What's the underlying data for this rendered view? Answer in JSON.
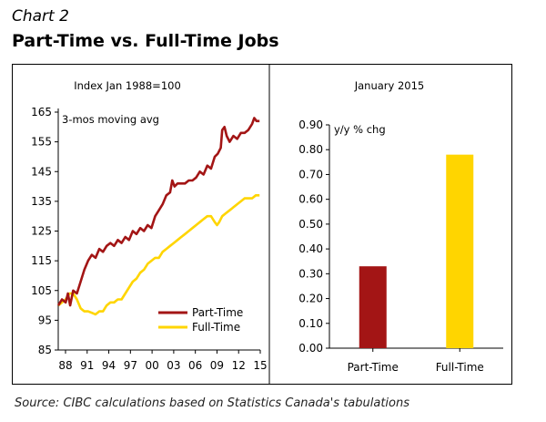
{
  "header": {
    "chart_number": "Chart 2",
    "title": "Part-Time vs. Full-Time Jobs"
  },
  "footer": {
    "source": "Source: CIBC calculations based on Statistics Canada's tabulations"
  },
  "colors": {
    "part_time": "#a31515",
    "full_time": "#ffd500"
  },
  "chart_data": [
    {
      "type": "line",
      "title": "Index Jan 1988=100",
      "annotation": "3-mos moving avg",
      "xlabel": "",
      "ylabel": "",
      "xlim": [
        1988,
        2015.1
      ],
      "ylim": [
        85,
        165
      ],
      "yticks": [
        85,
        95,
        105,
        115,
        125,
        135,
        145,
        155,
        165
      ],
      "xtick_labels": [
        "88",
        "91",
        "94",
        "97",
        "00",
        "03",
        "06",
        "09",
        "12",
        "15"
      ],
      "legend": "bottom-right",
      "series": [
        {
          "name": "Part-Time",
          "color": "#a31515",
          "points": [
            [
              1988.0,
              100
            ],
            [
              1988.5,
              102
            ],
            [
              1989.0,
              101
            ],
            [
              1989.3,
              104
            ],
            [
              1989.6,
              100
            ],
            [
              1990.0,
              105
            ],
            [
              1990.5,
              104
            ],
            [
              1991.0,
              108
            ],
            [
              1991.5,
              112
            ],
            [
              1992.0,
              115
            ],
            [
              1992.5,
              117
            ],
            [
              1993.0,
              116
            ],
            [
              1993.5,
              119
            ],
            [
              1994.0,
              118
            ],
            [
              1994.5,
              120
            ],
            [
              1995.0,
              121
            ],
            [
              1995.5,
              120
            ],
            [
              1996.0,
              122
            ],
            [
              1996.5,
              121
            ],
            [
              1997.0,
              123
            ],
            [
              1997.5,
              122
            ],
            [
              1998.0,
              125
            ],
            [
              1998.5,
              124
            ],
            [
              1999.0,
              126
            ],
            [
              1999.5,
              125
            ],
            [
              2000.0,
              127
            ],
            [
              2000.5,
              126
            ],
            [
              2001.0,
              130
            ],
            [
              2001.5,
              132
            ],
            [
              2002.0,
              134
            ],
            [
              2002.5,
              137
            ],
            [
              2003.0,
              138
            ],
            [
              2003.3,
              142
            ],
            [
              2003.6,
              140
            ],
            [
              2004.0,
              141
            ],
            [
              2004.5,
              141
            ],
            [
              2005.0,
              141
            ],
            [
              2005.5,
              142
            ],
            [
              2006.0,
              142
            ],
            [
              2006.5,
              143
            ],
            [
              2007.0,
              145
            ],
            [
              2007.5,
              144
            ],
            [
              2008.0,
              147
            ],
            [
              2008.5,
              146
            ],
            [
              2009.0,
              150
            ],
            [
              2009.4,
              151
            ],
            [
              2009.8,
              153
            ],
            [
              2010.0,
              159
            ],
            [
              2010.3,
              160
            ],
            [
              2010.6,
              157
            ],
            [
              2011.0,
              155
            ],
            [
              2011.5,
              157
            ],
            [
              2012.0,
              156
            ],
            [
              2012.5,
              158
            ],
            [
              2013.0,
              158
            ],
            [
              2013.5,
              159
            ],
            [
              2014.0,
              161
            ],
            [
              2014.3,
              163
            ],
            [
              2014.6,
              162
            ],
            [
              2015.0,
              162
            ]
          ]
        },
        {
          "name": "Full-Time",
          "color": "#ffd500",
          "points": [
            [
              1988.0,
              100
            ],
            [
              1988.5,
              101
            ],
            [
              1989.0,
              102
            ],
            [
              1989.5,
              104
            ],
            [
              1990.0,
              104
            ],
            [
              1990.5,
              102
            ],
            [
              1991.0,
              99
            ],
            [
              1991.5,
              98
            ],
            [
              1992.0,
              98
            ],
            [
              1992.5,
              97.5
            ],
            [
              1993.0,
              97
            ],
            [
              1993.5,
              98
            ],
            [
              1994.0,
              98
            ],
            [
              1994.5,
              100
            ],
            [
              1995.0,
              101
            ],
            [
              1995.5,
              101
            ],
            [
              1996.0,
              102
            ],
            [
              1996.5,
              102
            ],
            [
              1997.0,
              104
            ],
            [
              1997.5,
              106
            ],
            [
              1998.0,
              108
            ],
            [
              1998.5,
              109
            ],
            [
              1999.0,
              111
            ],
            [
              1999.5,
              112
            ],
            [
              2000.0,
              114
            ],
            [
              2000.5,
              115
            ],
            [
              2001.0,
              116
            ],
            [
              2001.5,
              116
            ],
            [
              2002.0,
              118
            ],
            [
              2002.5,
              119
            ],
            [
              2003.0,
              120
            ],
            [
              2003.5,
              121
            ],
            [
              2004.0,
              122
            ],
            [
              2004.5,
              123
            ],
            [
              2005.0,
              124
            ],
            [
              2005.5,
              125
            ],
            [
              2006.0,
              126
            ],
            [
              2006.5,
              127
            ],
            [
              2007.0,
              128
            ],
            [
              2007.5,
              129
            ],
            [
              2008.0,
              130
            ],
            [
              2008.5,
              130
            ],
            [
              2009.0,
              128
            ],
            [
              2009.3,
              127
            ],
            [
              2009.6,
              128
            ],
            [
              2010.0,
              130
            ],
            [
              2010.5,
              131
            ],
            [
              2011.0,
              132
            ],
            [
              2011.5,
              133
            ],
            [
              2012.0,
              134
            ],
            [
              2012.5,
              135
            ],
            [
              2013.0,
              136
            ],
            [
              2013.5,
              136
            ],
            [
              2014.0,
              136
            ],
            [
              2014.5,
              137
            ],
            [
              2015.0,
              137
            ]
          ]
        }
      ]
    },
    {
      "type": "bar",
      "title": "January 2015",
      "annotation": "y/y % chg",
      "xlabel": "",
      "ylabel": "",
      "ylim": [
        0,
        0.9
      ],
      "yticks": [
        "0.00",
        "0.10",
        "0.20",
        "0.30",
        "0.40",
        "0.50",
        "0.60",
        "0.70",
        "0.80",
        "0.90"
      ],
      "categories": [
        "Part-Time",
        "Full-Time"
      ],
      "values": [
        0.33,
        0.78
      ],
      "colors": [
        "#a31515",
        "#ffd500"
      ]
    }
  ]
}
